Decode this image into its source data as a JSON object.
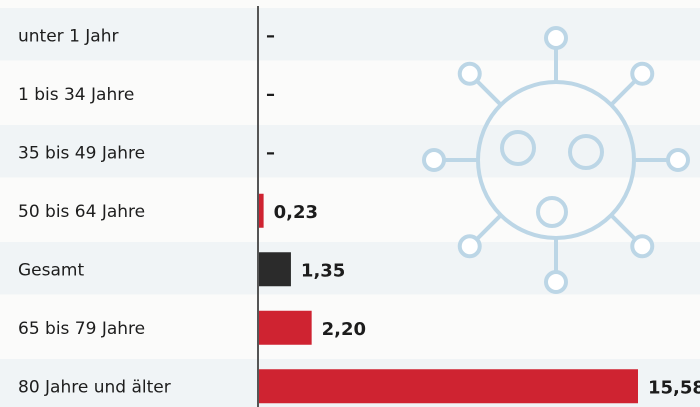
{
  "chart_data": {
    "type": "bar",
    "orientation": "horizontal",
    "categories": [
      "unter 1 Jahr",
      "1 bis 34 Jahre",
      "35 bis 49 Jahre",
      "50 bis 64 Jahre",
      "Gesamt",
      "65 bis 79 Jahre",
      "80 Jahre und älter"
    ],
    "values": [
      null,
      null,
      null,
      0.23,
      1.35,
      2.2,
      15.58
    ],
    "value_labels": [
      "–",
      "–",
      "–",
      "0,23",
      "1,35",
      "2,20",
      "15,58"
    ],
    "highlight_category": "Gesamt",
    "xlim": [
      0,
      15.58
    ],
    "grid": false,
    "legend": "none",
    "colors": {
      "bar": "#cf2331",
      "highlight_bar": "#2b2b2b",
      "row_band": "#f0f4f6",
      "axis": "#555555",
      "icon": "#bcd6e6"
    }
  },
  "decoration": {
    "icon": "virus-icon"
  }
}
